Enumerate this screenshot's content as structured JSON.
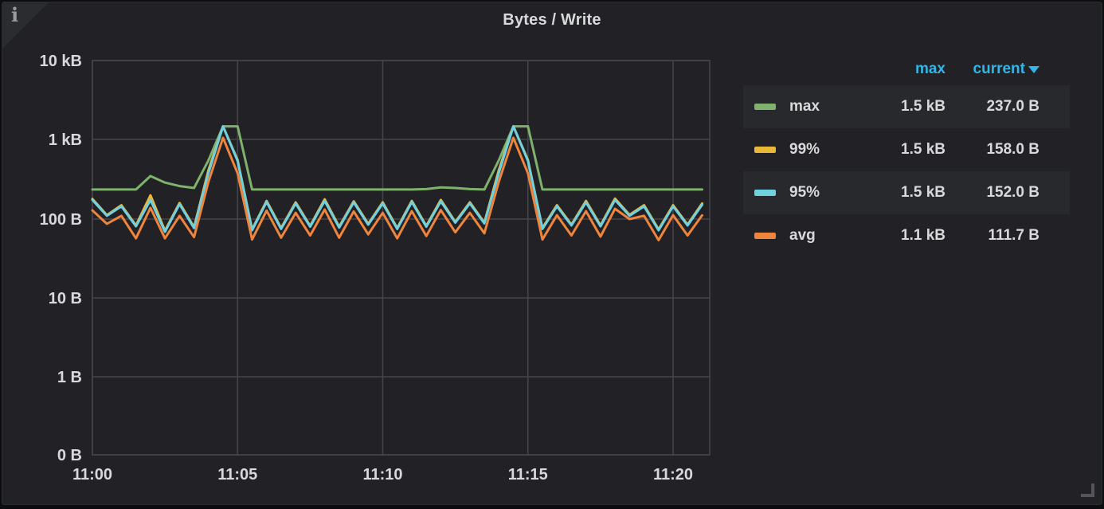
{
  "panel": {
    "title": "Bytes / Write",
    "info_icon": "i"
  },
  "legend": {
    "header": {
      "max": "max",
      "current": "current"
    },
    "rows": [
      {
        "label": "max",
        "color": "#7EB26D",
        "max": "1.5 kB",
        "current": "237.0 B"
      },
      {
        "label": "99%",
        "color": "#EAB839",
        "max": "1.5 kB",
        "current": "158.0 B"
      },
      {
        "label": "95%",
        "color": "#6ED0E0",
        "max": "1.5 kB",
        "current": "152.0 B"
      },
      {
        "label": "avg",
        "color": "#EF843C",
        "max": "1.1 kB",
        "current": "111.7 B"
      }
    ]
  },
  "chart_data": {
    "type": "line",
    "title": "Bytes / Write",
    "y_scale": "log10",
    "y_unit": "bytes",
    "ylim": [
      0,
      10240
    ],
    "grid": true,
    "legend_position": "right-table",
    "start_time": "11:00",
    "interval_seconds": 30,
    "xticks": [
      "11:00",
      "11:05",
      "11:10",
      "11:15",
      "11:20"
    ],
    "yticks": [
      {
        "label": "10 kB",
        "value": 10240
      },
      {
        "label": "1 kB",
        "value": 1024
      },
      {
        "label": "100 B",
        "value": 100
      },
      {
        "label": "10 B",
        "value": 10
      },
      {
        "label": "1 B",
        "value": 1
      },
      {
        "label": "0 B",
        "value": 0
      }
    ],
    "series": [
      {
        "name": "max",
        "color": "#7EB26D",
        "values": [
          237,
          237,
          237,
          237,
          351,
          290,
          262,
          248,
          558,
          1500,
          1500,
          237,
          237,
          237,
          237,
          237,
          237,
          237,
          237,
          237,
          237,
          237,
          237,
          240,
          252,
          248,
          240,
          237,
          558,
          1500,
          1500,
          237,
          237,
          237,
          237,
          237,
          237,
          237,
          237,
          237,
          237,
          237,
          237
        ]
      },
      {
        "name": "99%",
        "color": "#EAB839",
        "values": [
          180,
          112,
          150,
          83,
          200,
          71,
          160,
          79,
          420,
          1500,
          560,
          74,
          170,
          77,
          163,
          82,
          178,
          80,
          168,
          87,
          163,
          77,
          170,
          82,
          175,
          92,
          163,
          90,
          420,
          1500,
          560,
          77,
          150,
          85,
          170,
          83,
          182,
          113,
          150,
          74,
          150,
          85,
          158
        ]
      },
      {
        "name": "95%",
        "color": "#6ED0E0",
        "values": [
          175,
          110,
          145,
          81,
          175,
          69,
          155,
          77,
          386,
          1500,
          545,
          72,
          165,
          75,
          158,
          80,
          170,
          78,
          163,
          85,
          158,
          75,
          165,
          80,
          168,
          90,
          158,
          88,
          386,
          1500,
          545,
          75,
          145,
          83,
          163,
          81,
          175,
          110,
          145,
          72,
          145,
          83,
          152
        ]
      },
      {
        "name": "avg",
        "color": "#EF843C",
        "values": [
          129,
          87,
          110,
          57,
          139,
          57,
          110,
          59,
          300,
          1072,
          380,
          55,
          128,
          58,
          120,
          62,
          132,
          58,
          125,
          64,
          120,
          57,
          126,
          61,
          130,
          68,
          120,
          66,
          300,
          1072,
          380,
          55,
          112,
          62,
          126,
          60,
          135,
          100,
          110,
          54,
          112,
          62,
          111.7
        ]
      }
    ]
  },
  "colors": {
    "panel_bg": "#222226",
    "grid": "#44454a",
    "axis_text": "#d8d9da",
    "legend_header": "#33b5e5",
    "stripe": "#28292c"
  }
}
